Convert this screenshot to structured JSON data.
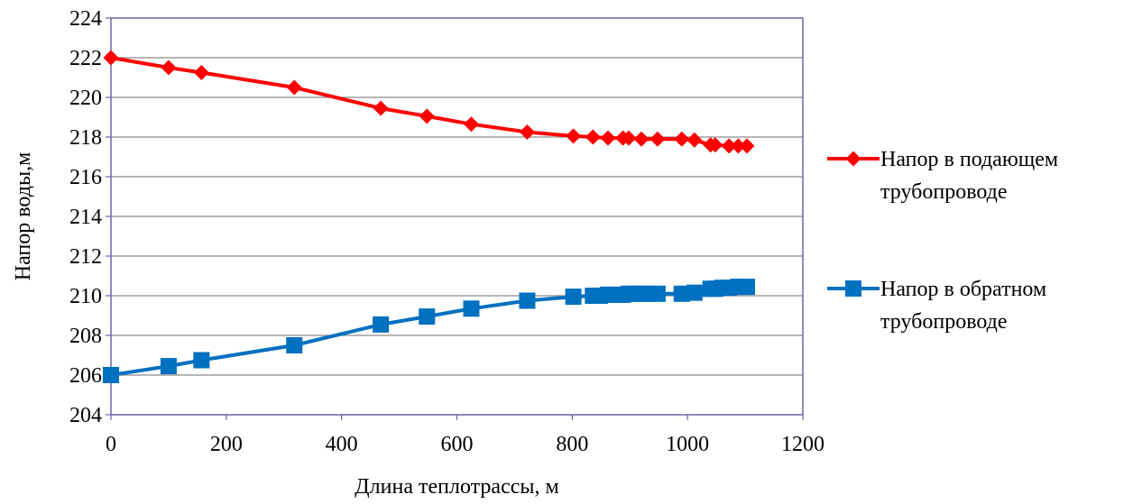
{
  "chart_data": {
    "type": "line",
    "title": "",
    "xlabel": "Длина теплотрассы, м",
    "ylabel": "Напор воды,м",
    "xlim": [
      0,
      1200
    ],
    "ylim": [
      204,
      224
    ],
    "xticks": [
      "0",
      "200",
      "400",
      "600",
      "800",
      "1000",
      "1200"
    ],
    "yticks": [
      "204",
      "206",
      "208",
      "210",
      "212",
      "214",
      "216",
      "218",
      "220",
      "222",
      "224"
    ],
    "grid": "horizontal",
    "legend_position": "right",
    "series": [
      {
        "name": "Напор в подающем трубопроводе",
        "legend_lines": [
          "Напор в подающем",
          "трубопроводе"
        ],
        "color": "#ff0000",
        "marker": "diamond",
        "x": [
          0,
          100,
          157,
          318,
          468,
          548,
          625,
          722,
          802,
          836,
          862,
          888,
          898,
          920,
          948,
          990,
          1012,
          1040,
          1048,
          1072,
          1088,
          1103
        ],
        "y": [
          222.0,
          221.5,
          221.25,
          220.5,
          219.45,
          219.05,
          218.65,
          218.25,
          218.05,
          218.0,
          217.95,
          217.95,
          217.95,
          217.9,
          217.9,
          217.9,
          217.85,
          217.6,
          217.6,
          217.55,
          217.55,
          217.55
        ]
      },
      {
        "name": "Напор в обратном трубопроводе",
        "legend_lines": [
          "Напор в обратном",
          "трубопроводе"
        ],
        "color": "#0070c0",
        "marker": "square",
        "x": [
          0,
          100,
          157,
          318,
          468,
          548,
          625,
          722,
          802,
          836,
          848,
          862,
          875,
          888,
          898,
          910,
          920,
          935,
          948,
          990,
          1012,
          1040,
          1048,
          1060,
          1072,
          1088,
          1103
        ],
        "y": [
          206.0,
          206.45,
          206.75,
          207.5,
          208.55,
          208.95,
          209.35,
          209.75,
          209.95,
          210.0,
          210.0,
          210.05,
          210.05,
          210.05,
          210.1,
          210.1,
          210.1,
          210.1,
          210.1,
          210.1,
          210.15,
          210.35,
          210.35,
          210.4,
          210.4,
          210.45,
          210.45
        ]
      }
    ]
  }
}
